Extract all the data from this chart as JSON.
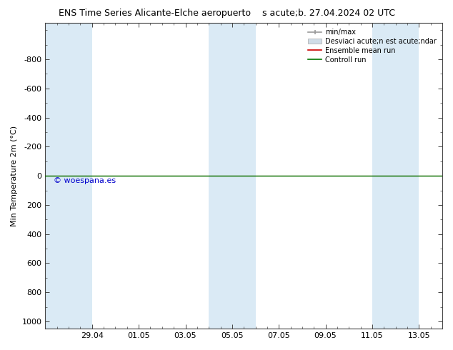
{
  "title_left": "ENS Time Series Alicante-Elche aeropuerto",
  "title_right": "s acute;b. 27.04.2024 02 UTC",
  "ylabel": "Min Temperature 2m (°C)",
  "ylim_min": -1050,
  "ylim_max": 1050,
  "yticks": [
    -800,
    -600,
    -400,
    -200,
    0,
    200,
    400,
    600,
    800,
    1000
  ],
  "xtick_labels": [
    "29.04",
    "01.05",
    "03.05",
    "05.05",
    "07.05",
    "09.05",
    "11.05",
    "13.05"
  ],
  "bg_color": "#ffffff",
  "plot_bg_color": "#ffffff",
  "band_color": "#daeaf5",
  "ensemble_mean_color": "#cc0000",
  "control_run_color": "#007700",
  "copyright_text": "© woespana.es",
  "copyright_color": "#0000cc",
  "legend_minmax_label": "min/max",
  "legend_std_label": "Desviaci acute;n est acute;ndar",
  "legend_ens_label": "Ensemble mean run",
  "legend_ctrl_label": "Controll run",
  "legend_minmax_color": "#999999",
  "legend_std_color": "#cccccc",
  "start_date": "2024-04-27",
  "end_date": "2024-05-14",
  "weekend_bands": [
    [
      "2024-04-27",
      "2024-04-28"
    ],
    [
      "2024-04-28",
      "2024-04-29"
    ],
    [
      "2024-05-04",
      "2024-05-05"
    ],
    [
      "2024-05-05",
      "2024-05-06"
    ],
    [
      "2024-05-11",
      "2024-05-12"
    ],
    [
      "2024-05-12",
      "2024-05-13"
    ]
  ]
}
